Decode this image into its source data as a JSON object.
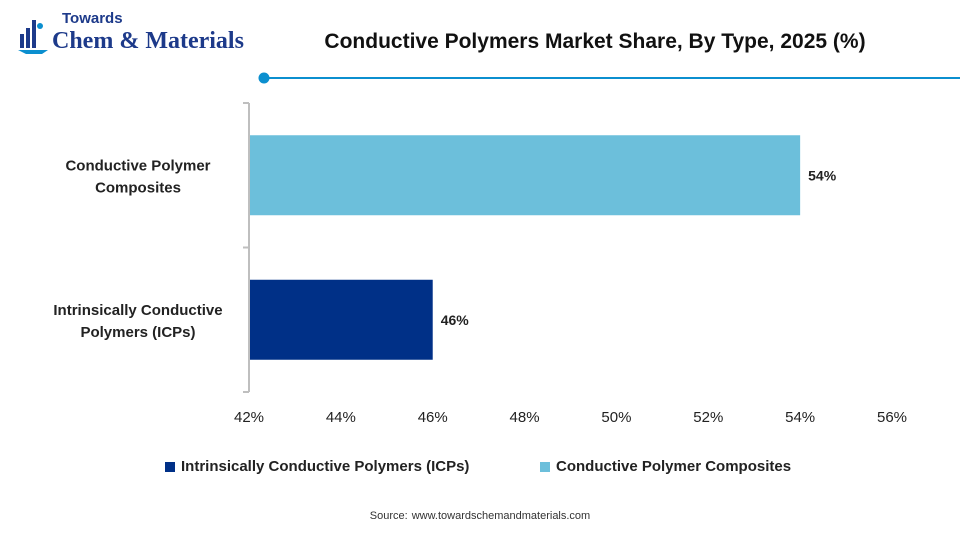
{
  "logo": {
    "line1": "Towards",
    "line2": "Chem & Materials"
  },
  "chart_data": {
    "type": "bar",
    "orientation": "horizontal",
    "title": "Conductive Polymers Market Share, By Type, 2025 (%)",
    "categories": [
      "Conductive Polymer Composites",
      "Intrinsically Conductive Polymers (ICPs)"
    ],
    "category_label_lines": [
      [
        "Conductive Polymer",
        "Composites"
      ],
      [
        "Intrinsically Conductive",
        "Polymers (ICPs)"
      ]
    ],
    "values": [
      54,
      46
    ],
    "data_labels": [
      "54%",
      "46%"
    ],
    "colors": [
      "#6cbfdb",
      "#003087"
    ],
    "xlim": [
      42,
      56
    ],
    "x_ticks": [
      42,
      44,
      46,
      48,
      50,
      52,
      54,
      56
    ],
    "x_tick_labels": [
      "42%",
      "44%",
      "46%",
      "48%",
      "50%",
      "52%",
      "54%",
      "56%"
    ],
    "grid": false,
    "legend": {
      "position": "bottom",
      "entries": [
        {
          "label": "Intrinsically Conductive Polymers (ICPs)",
          "color": "#003087"
        },
        {
          "label": "Conductive Polymer Composites",
          "color": "#6cbfdb"
        }
      ]
    }
  },
  "source": {
    "prefix": "Source:",
    "text": "www.towardschemandmaterials.com"
  },
  "accent_color": "#0b8fcf"
}
